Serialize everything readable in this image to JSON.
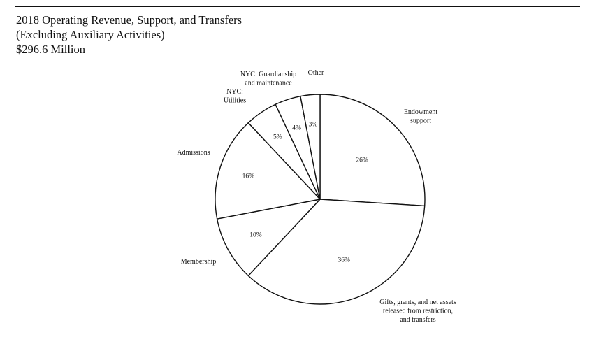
{
  "header": {
    "title": "2018 Operating Revenue, Support, and Transfers",
    "subtitle": "(Excluding Auxiliary Activities)",
    "total": "$296.6 Million"
  },
  "chart_data": {
    "type": "pie",
    "title": "2018 Operating Revenue, Support, and Transfers",
    "subtitle": "(Excluding Auxiliary Activities)",
    "total": "$296.6 Million",
    "slices": [
      {
        "category": [
          "Endowment",
          "support"
        ],
        "value": 26,
        "label": "26%"
      },
      {
        "category": [
          "Gifts, grants, and net assets",
          "released from restriction,",
          "and transfers"
        ],
        "value": 36,
        "label": "36%"
      },
      {
        "category": [
          "Membership"
        ],
        "value": 10,
        "label": "10%"
      },
      {
        "category": [
          "Admissions"
        ],
        "value": 16,
        "label": "16%"
      },
      {
        "category": [
          "NYC:",
          "Utilities"
        ],
        "value": 5,
        "label": "5%"
      },
      {
        "category": [
          "NYC: Guardianship",
          "and maintenance"
        ],
        "value": 4,
        "label": "4%"
      },
      {
        "category": [
          "Other"
        ],
        "value": 3,
        "label": "3%"
      }
    ]
  }
}
